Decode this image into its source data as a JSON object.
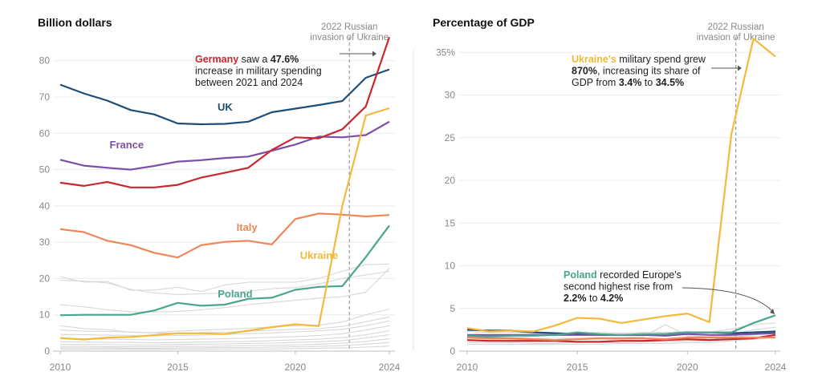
{
  "colors": {
    "Germany": "#c8282d",
    "UK": "#1c4e7a",
    "France": "#7b4fa8",
    "Italy": "#ee8659",
    "Ukraine": "#f3b93a",
    "Poland": "#4aa68f",
    "others": "#d7d7d7",
    "grid": "#ececec",
    "axis": "#bdbdbd"
  },
  "chart_data": [
    {
      "type": "line",
      "title": "Billion dollars",
      "x": [
        2010,
        2011,
        2012,
        2013,
        2014,
        2015,
        2016,
        2017,
        2018,
        2019,
        2020,
        2021,
        2022,
        2023,
        2024
      ],
      "xticks": [
        2010,
        2015,
        2020,
        2024
      ],
      "yticks": [
        0,
        10,
        20,
        30,
        40,
        50,
        60,
        70,
        80
      ],
      "ytick_labels": [
        "0",
        "10",
        "20",
        "30",
        "40",
        "50",
        "60",
        "70",
        "80"
      ],
      "ylim": [
        0,
        87
      ],
      "series": [
        {
          "name": "UK",
          "label": "UK",
          "values": [
            73.4,
            71.0,
            69.0,
            66.4,
            65.2,
            62.7,
            62.5,
            62.6,
            63.2,
            65.8,
            66.8,
            67.8,
            68.9,
            75.3,
            77.6
          ]
        },
        {
          "name": "France",
          "label": "France",
          "values": [
            52.7,
            51.1,
            50.5,
            50.0,
            51.0,
            52.2,
            52.6,
            53.2,
            53.6,
            55.2,
            56.9,
            59.1,
            58.9,
            59.5,
            63.2
          ]
        },
        {
          "name": "Germany",
          "label": "Germany",
          "values": [
            46.4,
            45.5,
            46.6,
            45.1,
            45.1,
            45.8,
            47.8,
            49.1,
            50.5,
            55.4,
            58.9,
            58.6,
            61.1,
            67.4,
            86.5
          ]
        },
        {
          "name": "Italy",
          "label": "Italy",
          "values": [
            33.6,
            32.8,
            30.4,
            29.2,
            27.1,
            25.8,
            29.2,
            30.1,
            30.4,
            29.4,
            36.4,
            37.9,
            37.6,
            37.1,
            37.5
          ]
        },
        {
          "name": "Poland",
          "label": "Poland",
          "values": [
            9.9,
            10.0,
            10.0,
            10.0,
            11.2,
            13.3,
            12.5,
            12.8,
            14.4,
            14.7,
            16.9,
            17.7,
            17.9,
            25.9,
            34.6
          ]
        },
        {
          "name": "Ukraine",
          "label": "Ukraine",
          "values": [
            3.6,
            3.2,
            3.7,
            3.9,
            4.4,
            4.9,
            4.9,
            4.7,
            5.6,
            6.6,
            7.4,
            6.9,
            40.0,
            64.9,
            66.9
          ]
        }
      ],
      "others": [
        [
          20.5,
          19.0,
          19.2,
          16.8,
          16.8,
          17.6,
          16.4,
          18.2,
          19.0,
          19.0,
          19.0,
          20.0,
          22.0,
          23.8,
          24.0
        ],
        [
          19.5,
          19.3,
          18.8,
          17.0,
          16.0,
          15.6,
          15.8,
          16.0,
          16.5,
          17.2,
          17.5,
          18.5,
          20.0,
          21.0,
          22.0
        ],
        [
          12.8,
          12.2,
          11.4,
          10.8,
          10.8,
          10.9,
          11.4,
          12.0,
          12.8,
          13.4,
          14.0,
          14.6,
          15.0,
          16.2,
          22.8
        ],
        [
          7.0,
          6.2,
          5.9,
          5.2,
          5.1,
          5.5,
          5.8,
          6.0,
          6.3,
          6.7,
          7.0,
          7.2,
          8.0,
          10.0,
          11.6
        ],
        [
          5.8,
          5.5,
          5.4,
          5.3,
          5.0,
          4.9,
          5.1,
          5.2,
          5.5,
          5.8,
          6.0,
          6.2,
          6.8,
          8.1,
          9.4
        ],
        [
          4.6,
          4.5,
          4.4,
          4.3,
          4.2,
          4.3,
          4.4,
          4.6,
          4.8,
          5.0,
          5.3,
          5.6,
          6.0,
          7.0,
          8.3
        ],
        [
          3.5,
          3.4,
          3.3,
          3.2,
          3.1,
          3.2,
          3.3,
          3.4,
          3.6,
          3.8,
          4.0,
          4.3,
          4.8,
          5.8,
          7.0
        ],
        [
          2.6,
          2.5,
          2.4,
          2.4,
          2.3,
          2.4,
          2.5,
          2.6,
          2.7,
          2.9,
          3.1,
          3.3,
          3.7,
          4.5,
          5.6
        ],
        [
          1.9,
          1.8,
          1.8,
          1.7,
          1.7,
          1.8,
          1.9,
          2.0,
          2.1,
          2.2,
          2.4,
          2.6,
          2.9,
          3.6,
          4.5
        ],
        [
          1.3,
          1.3,
          1.2,
          1.2,
          1.2,
          1.3,
          1.3,
          1.4,
          1.5,
          1.6,
          1.7,
          1.9,
          2.2,
          2.7,
          3.4
        ],
        [
          0.9,
          0.9,
          0.9,
          0.8,
          0.8,
          0.9,
          0.9,
          1.0,
          1.0,
          1.1,
          1.2,
          1.3,
          1.5,
          1.9,
          2.4
        ],
        [
          0.5,
          0.5,
          0.5,
          0.5,
          0.5,
          0.5,
          0.5,
          0.6,
          0.6,
          0.6,
          0.7,
          0.8,
          0.9,
          1.1,
          1.4
        ]
      ],
      "event": {
        "x": 2022.3,
        "line1": "2022 Russian",
        "line2": "invasion of Ukraine"
      },
      "annotation": {
        "lines": [
          [
            {
              "t": "Germany",
              "c": "Germany",
              "b": true
            },
            {
              "t": " saw a "
            },
            {
              "t": "47.6%",
              "b": true
            }
          ],
          [
            {
              "t": "increase in military spending"
            }
          ],
          [
            {
              "t": "between 2021 and 2024"
            }
          ]
        ]
      }
    },
    {
      "type": "line",
      "title": "Percentage of GDP",
      "x": [
        2010,
        2011,
        2012,
        2013,
        2014,
        2015,
        2016,
        2017,
        2018,
        2019,
        2020,
        2021,
        2022,
        2023,
        2024
      ],
      "xticks": [
        2010,
        2015,
        2020,
        2024
      ],
      "yticks": [
        0,
        5,
        10,
        15,
        20,
        25,
        30,
        35
      ],
      "ytick_labels": [
        "0",
        "5",
        "10",
        "15",
        "20",
        "25",
        "30",
        "35%"
      ],
      "ylim": [
        0,
        37
      ],
      "series": [
        {
          "name": "UK",
          "values": [
            2.5,
            2.4,
            2.4,
            2.2,
            2.1,
            2.0,
            1.9,
            1.9,
            1.9,
            2.0,
            2.2,
            2.2,
            2.1,
            2.2,
            2.3
          ]
        },
        {
          "name": "France",
          "values": [
            1.9,
            1.9,
            1.9,
            1.9,
            1.9,
            1.9,
            1.9,
            1.9,
            1.9,
            1.8,
            2.0,
            1.9,
            1.9,
            2.0,
            2.1
          ]
        },
        {
          "name": "Germany",
          "values": [
            1.3,
            1.2,
            1.2,
            1.2,
            1.2,
            1.1,
            1.1,
            1.2,
            1.2,
            1.3,
            1.4,
            1.3,
            1.4,
            1.5,
            1.9
          ]
        },
        {
          "name": "Italy",
          "values": [
            1.6,
            1.5,
            1.5,
            1.4,
            1.3,
            1.4,
            1.5,
            1.5,
            1.5,
            1.4,
            1.6,
            1.6,
            1.6,
            1.6,
            1.6
          ]
        },
        {
          "name": "Poland",
          "label": "Poland",
          "values": [
            1.8,
            1.7,
            1.8,
            1.8,
            1.9,
            2.2,
            2.0,
            1.9,
            2.0,
            2.0,
            2.2,
            2.2,
            2.2,
            3.3,
            4.2
          ]
        },
        {
          "name": "Ukraine",
          "label": "Ukraine",
          "values": [
            2.7,
            2.3,
            2.4,
            2.3,
            3.0,
            3.9,
            3.8,
            3.3,
            3.7,
            4.1,
            4.4,
            3.4,
            25.4,
            36.6,
            34.5
          ]
        }
      ],
      "others": [
        [
          2.3,
          2.2,
          2.2,
          2.1,
          2.0,
          2.1,
          2.2,
          2.1,
          2.2,
          2.2,
          2.3,
          2.2,
          2.6,
          3.1,
          3.3
        ],
        [
          1.7,
          1.6,
          1.6,
          1.5,
          1.5,
          1.5,
          1.6,
          1.6,
          1.7,
          3.1,
          1.8,
          1.7,
          2.0,
          2.5,
          2.8
        ],
        [
          1.5,
          1.4,
          1.4,
          1.3,
          1.3,
          1.4,
          1.4,
          1.4,
          1.5,
          1.5,
          1.6,
          1.6,
          1.8,
          2.1,
          2.4
        ],
        [
          1.2,
          1.2,
          1.1,
          1.1,
          1.1,
          1.1,
          1.1,
          1.2,
          1.2,
          1.3,
          1.4,
          1.4,
          1.6,
          1.9,
          2.2
        ],
        [
          1.0,
          1.0,
          1.0,
          0.9,
          0.9,
          1.0,
          1.0,
          1.0,
          1.1,
          1.1,
          1.2,
          1.2,
          1.4,
          1.6,
          1.9
        ],
        [
          0.8,
          0.8,
          0.8,
          0.8,
          0.8,
          0.8,
          0.8,
          0.9,
          0.9,
          0.9,
          1.0,
          1.0,
          1.2,
          1.4,
          1.6
        ]
      ],
      "event": {
        "x": 2022.2,
        "line1": "2022 Russian",
        "line2": "invasion of Ukraine"
      },
      "annotations": [
        {
          "lines": [
            [
              {
                "t": "Ukraine's",
                "c": "Ukraine",
                "b": true
              },
              {
                "t": " military spend grew"
              }
            ],
            [
              {
                "t": "870%",
                "b": true
              },
              {
                "t": ", increasing its share of"
              }
            ],
            [
              {
                "t": "GDP from "
              },
              {
                "t": "3.4%",
                "b": true
              },
              {
                "t": " to "
              },
              {
                "t": "34.5%",
                "b": true
              }
            ]
          ]
        },
        {
          "lines": [
            [
              {
                "t": "Poland",
                "c": "Poland",
                "b": true
              },
              {
                "t": " recorded Europe's"
              }
            ],
            [
              {
                "t": "second highest rise from"
              }
            ],
            [
              {
                "t": "2.2%",
                "b": true
              },
              {
                "t": " to "
              },
              {
                "t": "4.2%",
                "b": true
              }
            ]
          ]
        }
      ]
    }
  ]
}
